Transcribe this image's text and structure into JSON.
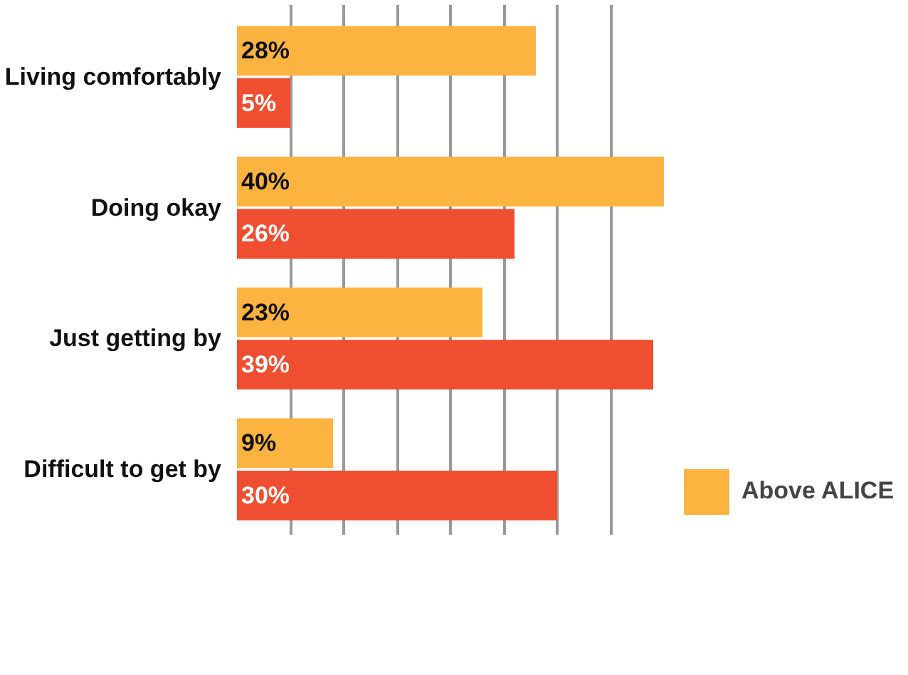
{
  "chart_data": {
    "type": "bar",
    "orientation": "horizontal",
    "categories": [
      "Living comfortably",
      "Doing okay",
      "Just getting by",
      "Difficult to get by"
    ],
    "series": [
      {
        "name": "Above ALICE",
        "color": "#fdb33f",
        "values": [
          28,
          40,
          23,
          9
        ],
        "value_labels": [
          "28%",
          "40%",
          "23%",
          "9%"
        ]
      },
      {
        "color": "#f04e30",
        "values": [
          5,
          26,
          39,
          30
        ],
        "value_labels": [
          "5%",
          "26%",
          "39%",
          "30%"
        ]
      }
    ],
    "tick_labels": "y",
    "grid": "x",
    "legend": "bottom right"
  }
}
